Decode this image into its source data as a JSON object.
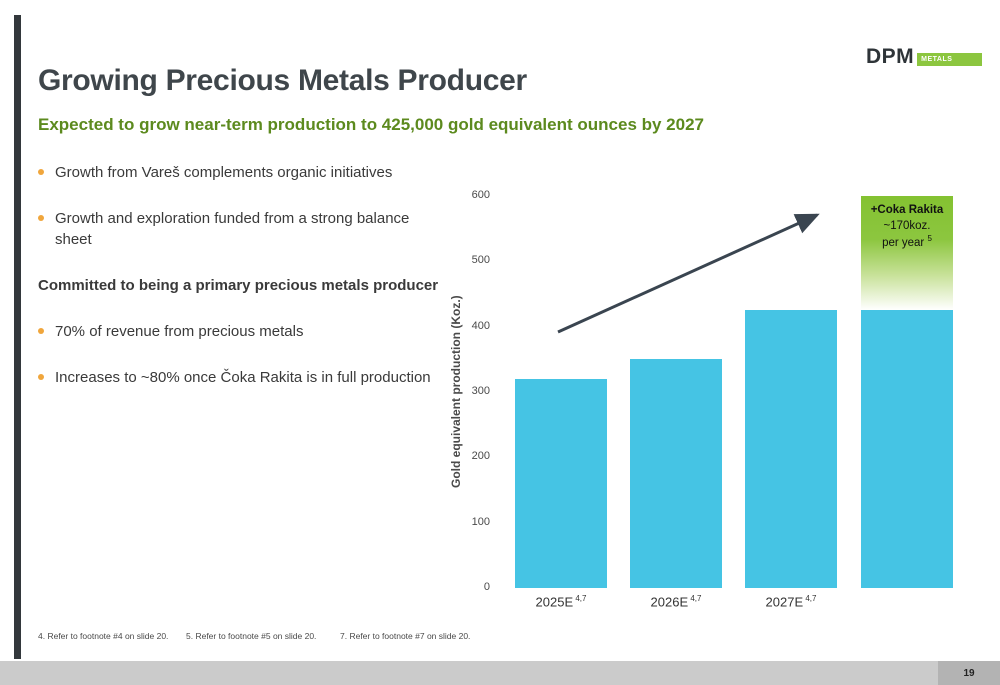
{
  "slide": {
    "title": "Growing Precious Metals Producer",
    "subtitle": "Expected to grow near-term production to 425,000 gold equivalent ounces by 2027",
    "page_number": "19"
  },
  "logo": {
    "dpm": "DPM",
    "metals": "METALS"
  },
  "bullets": {
    "items": [
      {
        "text": "Growth from Vareš complements organic initiatives",
        "bold": false,
        "bullet": true
      },
      {
        "text": "Growth and exploration funded from a strong balance sheet",
        "bold": false,
        "bullet": true
      },
      {
        "text": "Committed to being a primary precious metals producer",
        "bold": true,
        "bullet": false
      },
      {
        "text": "70% of revenue from precious metals",
        "bold": false,
        "bullet": true
      },
      {
        "text": "Increases to ~80% once Čoka Rakita is in full production",
        "bold": false,
        "bullet": true
      }
    ]
  },
  "chart_data": {
    "type": "bar",
    "categories": [
      "2025E",
      "2026E",
      "2027E",
      ""
    ],
    "category_superscript": "4,7",
    "values": [
      320,
      350,
      425,
      425
    ],
    "title": "",
    "xlabel": "",
    "ylabel": "Gold equivalent production (Koz.)",
    "yticks": [
      0,
      100,
      200,
      300,
      400,
      500,
      600
    ],
    "ylim": [
      0,
      600
    ],
    "bar_color": "#45c4e4",
    "grid": false,
    "legend": false,
    "annotation": {
      "title": "+Coka Rakita",
      "line2": "~170koz.",
      "line3": "per year",
      "superscript": "5",
      "from": 425,
      "to": 600
    },
    "arrow": {
      "present": true,
      "color": "#3a4550"
    }
  },
  "footnotes": [
    "4. Refer to footnote #4 on slide 20.",
    "5. Refer to footnote #5 on slide 20.",
    "7. Refer to footnote #7 on slide 20."
  ],
  "colors": {
    "accent_green": "#8cc63f",
    "subtitle_green": "#5c8a1e",
    "bar_cyan": "#45c4e4",
    "bullet_orange": "#f0a63c",
    "title_dark": "#3f464b",
    "bottom_bar_gray": "#cbcbcb"
  }
}
